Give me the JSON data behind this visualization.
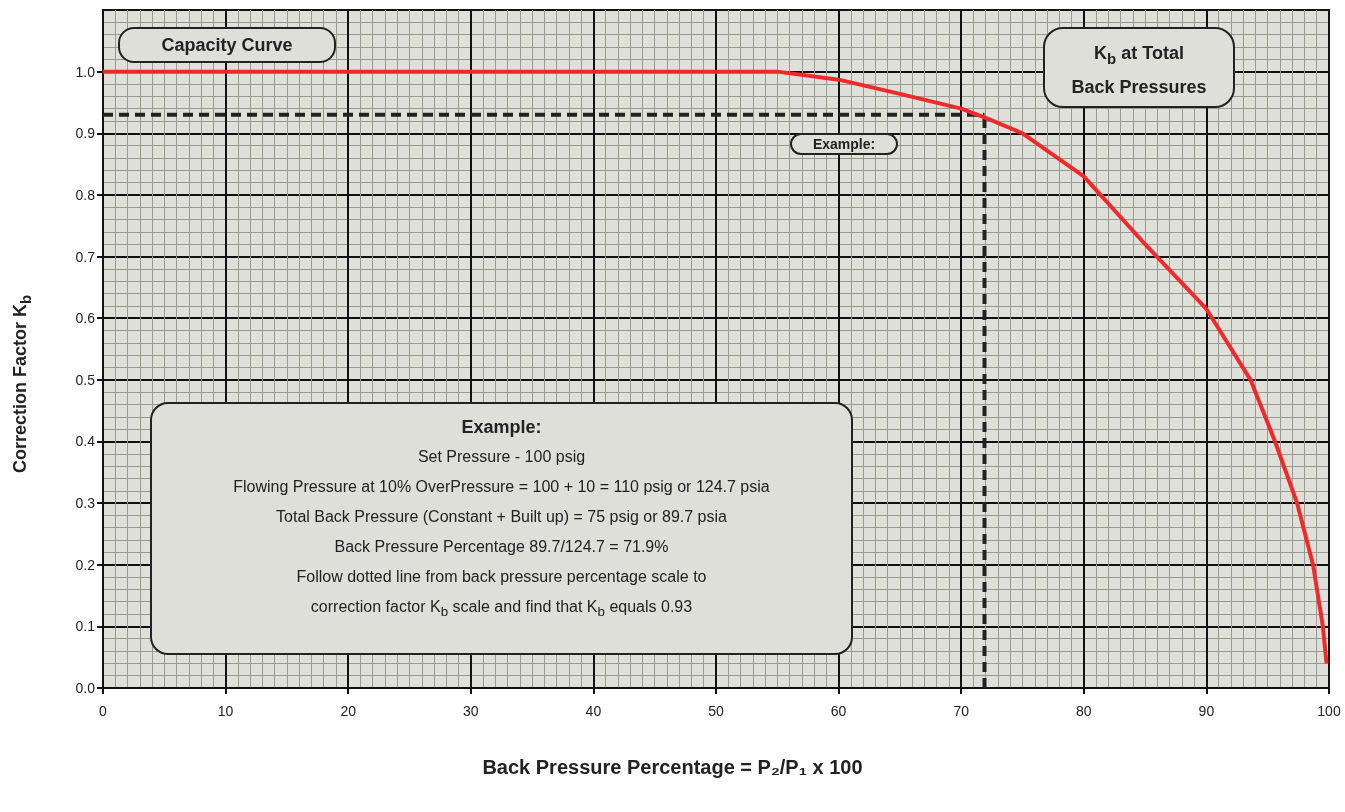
{
  "chart_data": {
    "type": "line",
    "xlabel": "Back Pressure Percentage = P₂/P₁ x 100",
    "ylabel": "Correction Factor K$_{b}$",
    "annotations": [
      "Capacity Curve",
      "K$_{b}$ at Total\nBack Pressures",
      "Example:",
      "Example:",
      "Set Pressure - 100 psig",
      "Flowing Pressure at 10% OverPressure = 100 + 10 = 110 psig or 124.7 psia",
      "Total Back Pressure (Constant + Built up) = 75 psig or 89.7 psia",
      "Back Pressure Percentage 89.7/124.7 = 71.9%",
      "Follow dotted line from back pressure percentage scale to",
      "correction factor K$_{b}$ scale and find that K$_{b}$ equals 0.93"
    ],
    "xlim": [
      0,
      100
    ],
    "xticks": [
      0,
      10,
      20,
      30,
      40,
      50,
      60,
      70,
      80,
      90,
      100
    ],
    "ylim": [
      0,
      1.1
    ],
    "yticks": [
      {
        "value": 0,
        "label": "0.0"
      },
      0.1,
      0.2,
      0.3,
      0.4,
      0.5,
      0.6,
      0.7,
      0.8,
      0.9,
      {
        "value": 1,
        "label": "1.0"
      }
    ],
    "grid": true,
    "marker": "none",
    "series": [
      {
        "color": "#ee2a2a",
        "x": [
          0,
          10,
          20,
          30,
          40,
          50,
          55,
          60,
          65,
          70,
          72,
          75,
          80,
          85,
          90,
          93.6,
          95.6,
          97.4,
          98.7,
          99.5,
          99.8
        ],
        "values": [
          1.0,
          1.0,
          1.0,
          1.0,
          1.0,
          1.0,
          1.0,
          0.987,
          0.964,
          0.94,
          0.925,
          0.9,
          0.83,
          0.72,
          0.615,
          0.5,
          0.4,
          0.3,
          0.2,
          0.1,
          0.04
        ]
      },
      {
        "color": "#222222",
        "line_style": "dashed",
        "x": [
          71.9,
          71.9
        ],
        "values": [
          0,
          0.93
        ]
      },
      {
        "color": "#222222",
        "line_style": "dashed",
        "x": [
          0,
          71.9
        ],
        "values": [
          0.93,
          0.93
        ]
      }
    ]
  }
}
